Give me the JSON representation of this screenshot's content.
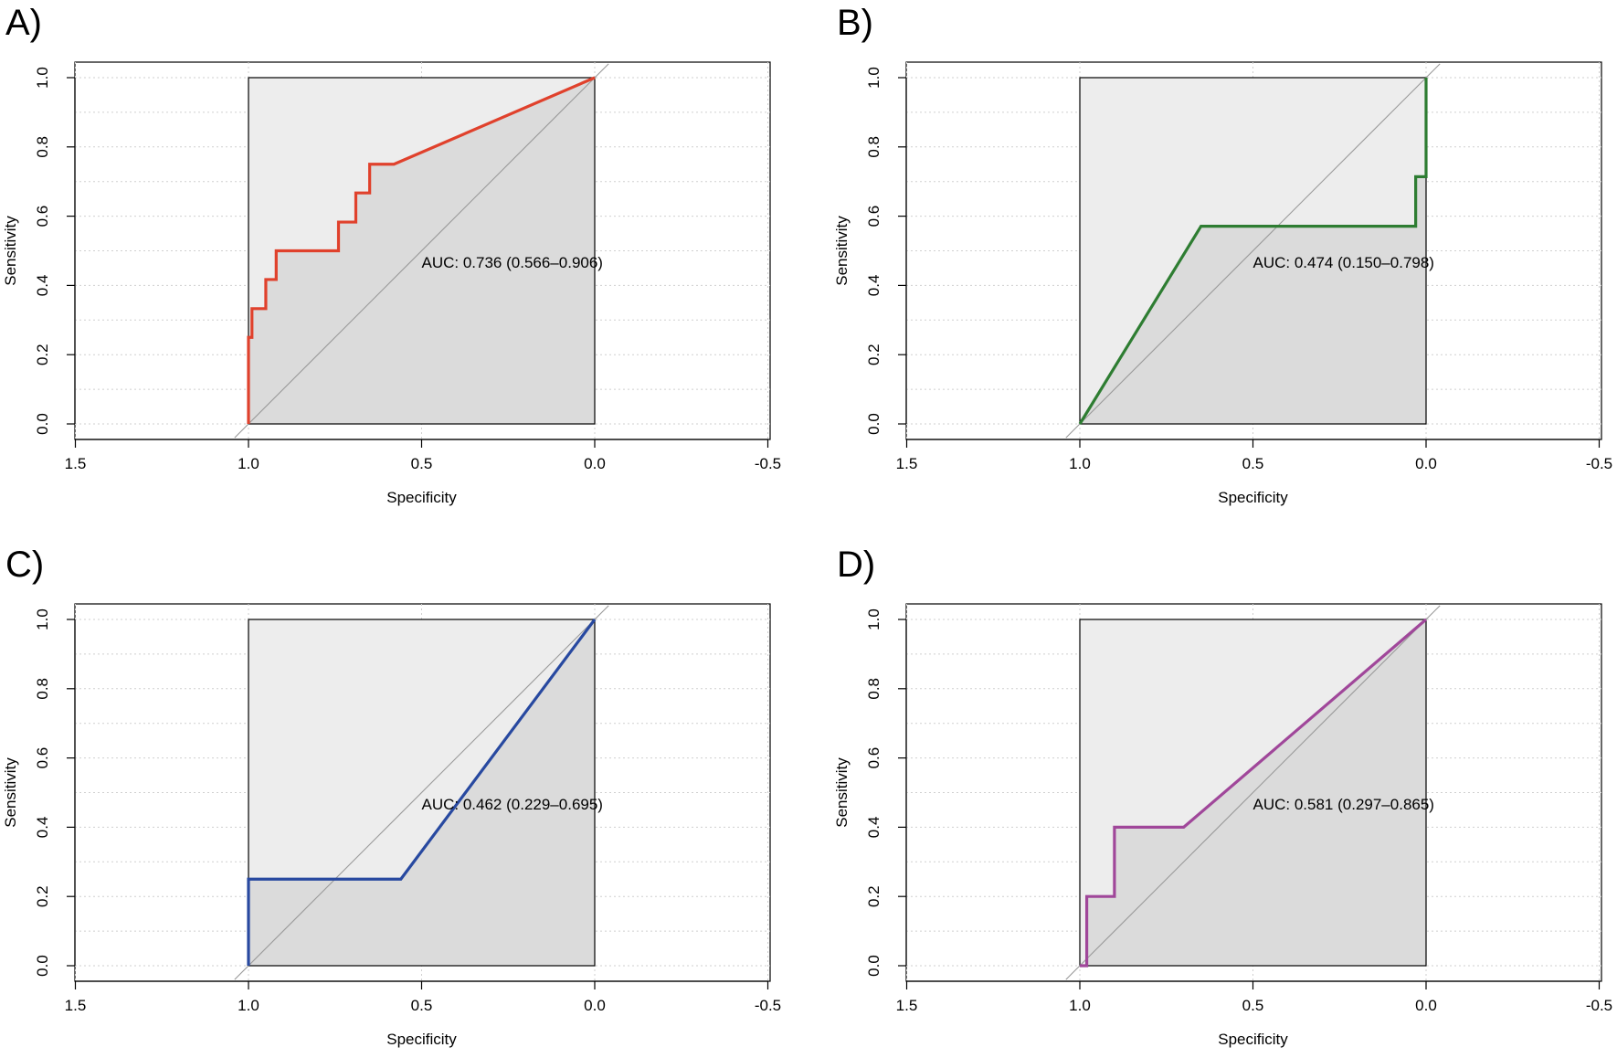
{
  "chart_data": [
    {
      "type": "line",
      "panel_label": "A)",
      "xlabel": "Specificity",
      "ylabel": "Sensitivity",
      "xlim": [
        1.5,
        -0.5
      ],
      "ylim": [
        0.0,
        1.0
      ],
      "x_ticks": [
        "1.5",
        "1.0",
        "0.5",
        "0.0",
        "-0.5"
      ],
      "x_tick_values": [
        1.5,
        1.0,
        0.5,
        0.0,
        -0.5
      ],
      "y_ticks": [
        "0.0",
        "0.2",
        "0.4",
        "0.6",
        "0.8",
        "1.0"
      ],
      "y_tick_values": [
        0.0,
        0.2,
        0.4,
        0.6,
        0.8,
        1.0
      ],
      "grid": true,
      "color": "#E0412C",
      "auc_text": "AUC: 0.736 (0.566–0.906)",
      "auc_text_pos": [
        0.5,
        0.47
      ],
      "series": [
        {
          "specificity": [
            1.0,
            1.0,
            0.99,
            0.99,
            0.95,
            0.95,
            0.92,
            0.92,
            0.74,
            0.74,
            0.69,
            0.69,
            0.65,
            0.65,
            0.58,
            0.0
          ],
          "sensitivity": [
            0.0,
            0.25,
            0.25,
            0.333,
            0.333,
            0.417,
            0.417,
            0.5,
            0.5,
            0.583,
            0.583,
            0.667,
            0.667,
            0.75,
            0.75,
            1.0
          ]
        }
      ]
    },
    {
      "type": "line",
      "panel_label": "B)",
      "xlabel": "Specificity",
      "ylabel": "Sensitivity",
      "xlim": [
        1.5,
        -0.5
      ],
      "ylim": [
        0.0,
        1.0
      ],
      "x_ticks": [
        "1.5",
        "1.0",
        "0.5",
        "0.0",
        "-0.5"
      ],
      "x_tick_values": [
        1.5,
        1.0,
        0.5,
        0.0,
        -0.5
      ],
      "y_ticks": [
        "0.0",
        "0.2",
        "0.4",
        "0.6",
        "0.8",
        "1.0"
      ],
      "y_tick_values": [
        0.0,
        0.2,
        0.4,
        0.6,
        0.8,
        1.0
      ],
      "grid": true,
      "color": "#2E7D32",
      "auc_text": "AUC: 0.474 (0.150–0.798)",
      "auc_text_pos": [
        0.5,
        0.47
      ],
      "series": [
        {
          "specificity": [
            1.0,
            0.65,
            0.03,
            0.03,
            0.0,
            0.0
          ],
          "sensitivity": [
            0.0,
            0.571,
            0.571,
            0.714,
            0.714,
            1.0
          ]
        }
      ]
    },
    {
      "type": "line",
      "panel_label": "C)",
      "xlabel": "Specificity",
      "ylabel": "Sensitivity",
      "xlim": [
        1.5,
        -0.5
      ],
      "ylim": [
        0.0,
        1.0
      ],
      "x_ticks": [
        "1.5",
        "1.0",
        "0.5",
        "0.0",
        "-0.5"
      ],
      "x_tick_values": [
        1.5,
        1.0,
        0.5,
        0.0,
        -0.5
      ],
      "y_ticks": [
        "0.0",
        "0.2",
        "0.4",
        "0.6",
        "0.8",
        "1.0"
      ],
      "y_tick_values": [
        0.0,
        0.2,
        0.4,
        0.6,
        0.8,
        1.0
      ],
      "grid": true,
      "color": "#2849A0",
      "auc_text": "AUC: 0.462 (0.229–0.695)",
      "auc_text_pos": [
        0.5,
        0.47
      ],
      "series": [
        {
          "specificity": [
            1.0,
            1.0,
            0.56,
            0.0
          ],
          "sensitivity": [
            0.0,
            0.25,
            0.25,
            1.0
          ]
        }
      ]
    },
    {
      "type": "line",
      "panel_label": "D)",
      "xlabel": "Specificity",
      "ylabel": "Sensitivity",
      "xlim": [
        1.5,
        -0.5
      ],
      "ylim": [
        0.0,
        1.0
      ],
      "x_ticks": [
        "1.5",
        "1.0",
        "0.5",
        "0.0",
        "-0.5"
      ],
      "x_tick_values": [
        1.5,
        1.0,
        0.5,
        0.0,
        -0.5
      ],
      "y_ticks": [
        "0.0",
        "0.2",
        "0.4",
        "0.6",
        "0.8",
        "1.0"
      ],
      "y_tick_values": [
        0.0,
        0.2,
        0.4,
        0.6,
        0.8,
        1.0
      ],
      "grid": true,
      "color": "#A0479A",
      "auc_text": "AUC: 0.581 (0.297–0.865)",
      "auc_text_pos": [
        0.5,
        0.47
      ],
      "series": [
        {
          "specificity": [
            1.0,
            0.98,
            0.98,
            0.9,
            0.9,
            0.7,
            0.0
          ],
          "sensitivity": [
            0.0,
            0.0,
            0.2,
            0.2,
            0.4,
            0.4,
            1.0
          ]
        }
      ]
    }
  ]
}
